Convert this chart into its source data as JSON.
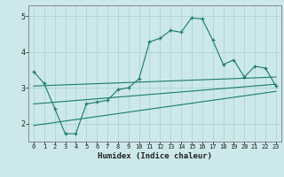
{
  "xlabel": "Humidex (Indice chaleur)",
  "bg_color": "#cce8ea",
  "grid_color": "#aed4d6",
  "line_color": "#1a7a6e",
  "xlim": [
    -0.5,
    23.5
  ],
  "ylim": [
    1.5,
    5.3
  ],
  "yticks": [
    2,
    3,
    4,
    5
  ],
  "xticks": [
    0,
    1,
    2,
    3,
    4,
    5,
    6,
    7,
    8,
    9,
    10,
    11,
    12,
    13,
    14,
    15,
    16,
    17,
    18,
    19,
    20,
    21,
    22,
    23
  ],
  "main_line_x": [
    0,
    1,
    2,
    3,
    4,
    5,
    6,
    7,
    8,
    9,
    10,
    11,
    12,
    13,
    14,
    15,
    16,
    17,
    18,
    19,
    20,
    21,
    22,
    23
  ],
  "main_line_y": [
    3.45,
    3.12,
    2.42,
    1.72,
    1.72,
    2.55,
    2.6,
    2.65,
    2.95,
    3.0,
    3.25,
    4.28,
    4.38,
    4.6,
    4.55,
    4.95,
    4.92,
    4.33,
    3.65,
    3.78,
    3.3,
    3.6,
    3.55,
    3.05
  ],
  "line1_x": [
    0,
    23
  ],
  "line1_y": [
    3.05,
    3.3
  ],
  "line2_x": [
    0,
    23
  ],
  "line2_y": [
    2.55,
    3.1
  ],
  "line3_x": [
    0,
    23
  ],
  "line3_y": [
    1.95,
    2.9
  ]
}
